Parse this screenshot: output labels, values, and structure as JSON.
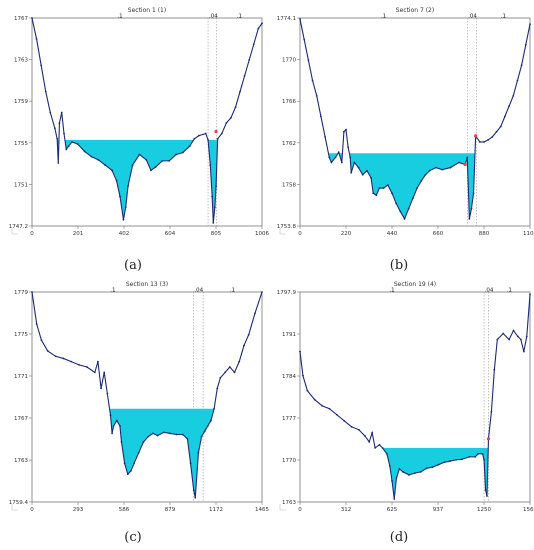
{
  "colors": {
    "water": "#19cde0",
    "ground": "#1c2a73",
    "bank": "#e8453c",
    "frame": "#777777",
    "manning_line": "#9a9a9a"
  },
  "chart_data": [
    {
      "type": "area",
      "title": "Section 1 (1)",
      "caption": "(a)",
      "manning": [
        ".1",
        ".04",
        ".1"
      ],
      "xticks": [
        "0",
        "201",
        "402",
        "604",
        "805",
        "1006"
      ],
      "yticks": [
        "1767",
        "1763",
        "1759",
        "1755",
        "1751",
        "1747.2"
      ],
      "xlim": [
        0,
        1006
      ],
      "ylim": [
        1747.2,
        1767
      ],
      "water_level": 1755.4,
      "bank_stations": [
        770,
        808
      ],
      "bank_markers": [
        {
          "x": 805,
          "y": 1756.2
        }
      ],
      "profile": [
        [
          0,
          1767
        ],
        [
          20,
          1765
        ],
        [
          40,
          1762.5
        ],
        [
          60,
          1760
        ],
        [
          80,
          1758
        ],
        [
          100,
          1756.5
        ],
        [
          110,
          1755.5
        ],
        [
          115,
          1753.2
        ],
        [
          120,
          1757
        ],
        [
          130,
          1758
        ],
        [
          140,
          1756
        ],
        [
          150,
          1754.5
        ],
        [
          160,
          1754.8
        ],
        [
          175,
          1755.2
        ],
        [
          200,
          1755
        ],
        [
          230,
          1754.3
        ],
        [
          260,
          1753.8
        ],
        [
          290,
          1753.5
        ],
        [
          320,
          1753
        ],
        [
          350,
          1752.5
        ],
        [
          370,
          1751.5
        ],
        [
          385,
          1750
        ],
        [
          400,
          1747.8
        ],
        [
          410,
          1749
        ],
        [
          420,
          1751
        ],
        [
          440,
          1753
        ],
        [
          470,
          1754
        ],
        [
          500,
          1753.5
        ],
        [
          520,
          1752.5
        ],
        [
          540,
          1752.8
        ],
        [
          570,
          1753.4
        ],
        [
          600,
          1753.4
        ],
        [
          630,
          1754
        ],
        [
          660,
          1754.2
        ],
        [
          690,
          1754.8
        ],
        [
          710,
          1755.5
        ],
        [
          730,
          1755.8
        ],
        [
          760,
          1756
        ],
        [
          770,
          1755.4
        ],
        [
          780,
          1753
        ],
        [
          788,
          1750
        ],
        [
          793,
          1747.5
        ],
        [
          800,
          1749
        ],
        [
          805,
          1751
        ],
        [
          812,
          1755.5
        ],
        [
          830,
          1756
        ],
        [
          850,
          1757
        ],
        [
          870,
          1757.5
        ],
        [
          890,
          1758.5
        ],
        [
          910,
          1760
        ],
        [
          930,
          1761.5
        ],
        [
          950,
          1763
        ],
        [
          970,
          1764.5
        ],
        [
          990,
          1766
        ],
        [
          1006,
          1766.5
        ]
      ]
    },
    {
      "type": "area",
      "title": "Section 7 (2)",
      "caption": "(b)",
      "manning": [
        ".1",
        ".04",
        ".1"
      ],
      "xticks": [
        "0",
        "220",
        "440",
        "660",
        "880",
        "1100"
      ],
      "yticks": [
        "1774.1",
        "1770",
        "1766",
        "1762",
        "1758",
        "1753.8"
      ],
      "xlim": [
        0,
        1100
      ],
      "ylim": [
        1753.8,
        1774.1
      ],
      "water_level": 1760.9,
      "bank_stations": [
        800,
        845
      ],
      "bank_markers": [
        {
          "x": 840,
          "y": 1762.6
        },
        {
          "x": 790,
          "y": 1759.8
        }
      ],
      "profile": [
        [
          0,
          1774
        ],
        [
          20,
          1772
        ],
        [
          40,
          1770
        ],
        [
          60,
          1768
        ],
        [
          80,
          1766.5
        ],
        [
          100,
          1764.5
        ],
        [
          120,
          1762.5
        ],
        [
          140,
          1760.5
        ],
        [
          150,
          1760
        ],
        [
          170,
          1760.5
        ],
        [
          185,
          1761
        ],
        [
          200,
          1760
        ],
        [
          210,
          1763
        ],
        [
          220,
          1763.2
        ],
        [
          230,
          1761.5
        ],
        [
          240,
          1760.5
        ],
        [
          245,
          1759
        ],
        [
          260,
          1760
        ],
        [
          280,
          1759.5
        ],
        [
          300,
          1758.8
        ],
        [
          320,
          1759.2
        ],
        [
          340,
          1758.5
        ],
        [
          350,
          1757
        ],
        [
          365,
          1756.8
        ],
        [
          380,
          1757.5
        ],
        [
          400,
          1757.5
        ],
        [
          420,
          1757.8
        ],
        [
          440,
          1757
        ],
        [
          460,
          1756
        ],
        [
          480,
          1755.2
        ],
        [
          500,
          1754.5
        ],
        [
          520,
          1755.5
        ],
        [
          540,
          1756.5
        ],
        [
          560,
          1757.5
        ],
        [
          580,
          1758.2
        ],
        [
          600,
          1758.8
        ],
        [
          620,
          1759.2
        ],
        [
          650,
          1759.5
        ],
        [
          680,
          1759.3
        ],
        [
          720,
          1759.5
        ],
        [
          760,
          1760
        ],
        [
          790,
          1759.8
        ],
        [
          800,
          1760.5
        ],
        [
          810,
          1754.5
        ],
        [
          820,
          1755.5
        ],
        [
          830,
          1757
        ],
        [
          840,
          1762.6
        ],
        [
          860,
          1762
        ],
        [
          880,
          1762
        ],
        [
          900,
          1762.2
        ],
        [
          920,
          1762.5
        ],
        [
          940,
          1763
        ],
        [
          960,
          1763.5
        ],
        [
          980,
          1764.5
        ],
        [
          1000,
          1765.5
        ],
        [
          1020,
          1766.5
        ],
        [
          1040,
          1768
        ],
        [
          1060,
          1769.5
        ],
        [
          1080,
          1771.5
        ],
        [
          1100,
          1773.5
        ]
      ]
    },
    {
      "type": "area",
      "title": "Section 13 (3)",
      "caption": "(c)",
      "manning": [
        ".1",
        ".04",
        ".1"
      ],
      "xticks": [
        "0",
        "293",
        "586",
        "879",
        "1172",
        "1465"
      ],
      "yticks": [
        "1779",
        "1775",
        "1771",
        "1767",
        "1763",
        "1759.4"
      ],
      "xlim": [
        0,
        1465
      ],
      "ylim": [
        1759.4,
        1779
      ],
      "water_level": 1768.1,
      "bank_stations": [
        1030,
        1090
      ],
      "bank_markers": [],
      "profile": [
        [
          0,
          1779
        ],
        [
          30,
          1776
        ],
        [
          60,
          1774.5
        ],
        [
          100,
          1773.5
        ],
        [
          150,
          1773
        ],
        [
          200,
          1772.8
        ],
        [
          250,
          1772.5
        ],
        [
          300,
          1772.2
        ],
        [
          350,
          1772
        ],
        [
          400,
          1771.5
        ],
        [
          420,
          1772.5
        ],
        [
          440,
          1770
        ],
        [
          460,
          1771.5
        ],
        [
          480,
          1769.5
        ],
        [
          500,
          1767.5
        ],
        [
          510,
          1765.8
        ],
        [
          520,
          1766.5
        ],
        [
          540,
          1767
        ],
        [
          560,
          1766.5
        ],
        [
          570,
          1765
        ],
        [
          590,
          1763
        ],
        [
          610,
          1762
        ],
        [
          630,
          1762.3
        ],
        [
          650,
          1763
        ],
        [
          680,
          1764
        ],
        [
          710,
          1765
        ],
        [
          740,
          1765.5
        ],
        [
          770,
          1765.8
        ],
        [
          800,
          1765.6
        ],
        [
          840,
          1765.9
        ],
        [
          880,
          1765.8
        ],
        [
          920,
          1765.7
        ],
        [
          960,
          1765.7
        ],
        [
          990,
          1765.3
        ],
        [
          1010,
          1763
        ],
        [
          1030,
          1760.5
        ],
        [
          1040,
          1759.8
        ],
        [
          1060,
          1764
        ],
        [
          1080,
          1765.5
        ],
        [
          1100,
          1766
        ],
        [
          1120,
          1766.5
        ],
        [
          1140,
          1767
        ],
        [
          1160,
          1768.1
        ],
        [
          1180,
          1770
        ],
        [
          1200,
          1771
        ],
        [
          1230,
          1771.5
        ],
        [
          1260,
          1772
        ],
        [
          1290,
          1771.5
        ],
        [
          1320,
          1772.5
        ],
        [
          1350,
          1774
        ],
        [
          1380,
          1775
        ],
        [
          1420,
          1777
        ],
        [
          1465,
          1779
        ]
      ]
    },
    {
      "type": "area",
      "title": "Section 19 (4)",
      "caption": "(d)",
      "manning": [
        ".1",
        ".04",
        ".1"
      ],
      "xticks": [
        "0",
        "312",
        "625",
        "937",
        "1250",
        "1562"
      ],
      "yticks": [
        "1797.9",
        "1791",
        "1784",
        "1777",
        "1770",
        "1763"
      ],
      "xlim": [
        0,
        1562
      ],
      "ylim": [
        1763,
        1797.9
      ],
      "water_level": 1772,
      "bank_stations": [
        1250,
        1280
      ],
      "bank_markers": [
        {
          "x": 1280,
          "y": 1773.5
        }
      ],
      "profile": [
        [
          0,
          1788
        ],
        [
          20,
          1784
        ],
        [
          50,
          1781.5
        ],
        [
          100,
          1780
        ],
        [
          150,
          1779
        ],
        [
          200,
          1778.5
        ],
        [
          250,
          1777.5
        ],
        [
          300,
          1776.5
        ],
        [
          350,
          1775.5
        ],
        [
          400,
          1775
        ],
        [
          440,
          1774
        ],
        [
          470,
          1773
        ],
        [
          490,
          1774.5
        ],
        [
          510,
          1772
        ],
        [
          540,
          1772.5
        ],
        [
          560,
          1772
        ],
        [
          590,
          1771
        ],
        [
          610,
          1769
        ],
        [
          625,
          1766.5
        ],
        [
          640,
          1763.5
        ],
        [
          655,
          1767
        ],
        [
          675,
          1768.5
        ],
        [
          700,
          1768
        ],
        [
          740,
          1767.5
        ],
        [
          780,
          1767.8
        ],
        [
          820,
          1768
        ],
        [
          860,
          1768.6
        ],
        [
          900,
          1768.8
        ],
        [
          940,
          1769.2
        ],
        [
          980,
          1769.6
        ],
        [
          1020,
          1769.8
        ],
        [
          1060,
          1770
        ],
        [
          1100,
          1770.1
        ],
        [
          1150,
          1770.5
        ],
        [
          1190,
          1770.5
        ],
        [
          1210,
          1771
        ],
        [
          1240,
          1771
        ],
        [
          1250,
          1770
        ],
        [
          1260,
          1765
        ],
        [
          1270,
          1764
        ],
        [
          1280,
          1773.5
        ],
        [
          1300,
          1778
        ],
        [
          1320,
          1785
        ],
        [
          1340,
          1790
        ],
        [
          1380,
          1791
        ],
        [
          1420,
          1790
        ],
        [
          1450,
          1791.5
        ],
        [
          1480,
          1790.5
        ],
        [
          1500,
          1790
        ],
        [
          1520,
          1788
        ],
        [
          1540,
          1790.5
        ],
        [
          1562,
          1797.5
        ]
      ]
    }
  ]
}
